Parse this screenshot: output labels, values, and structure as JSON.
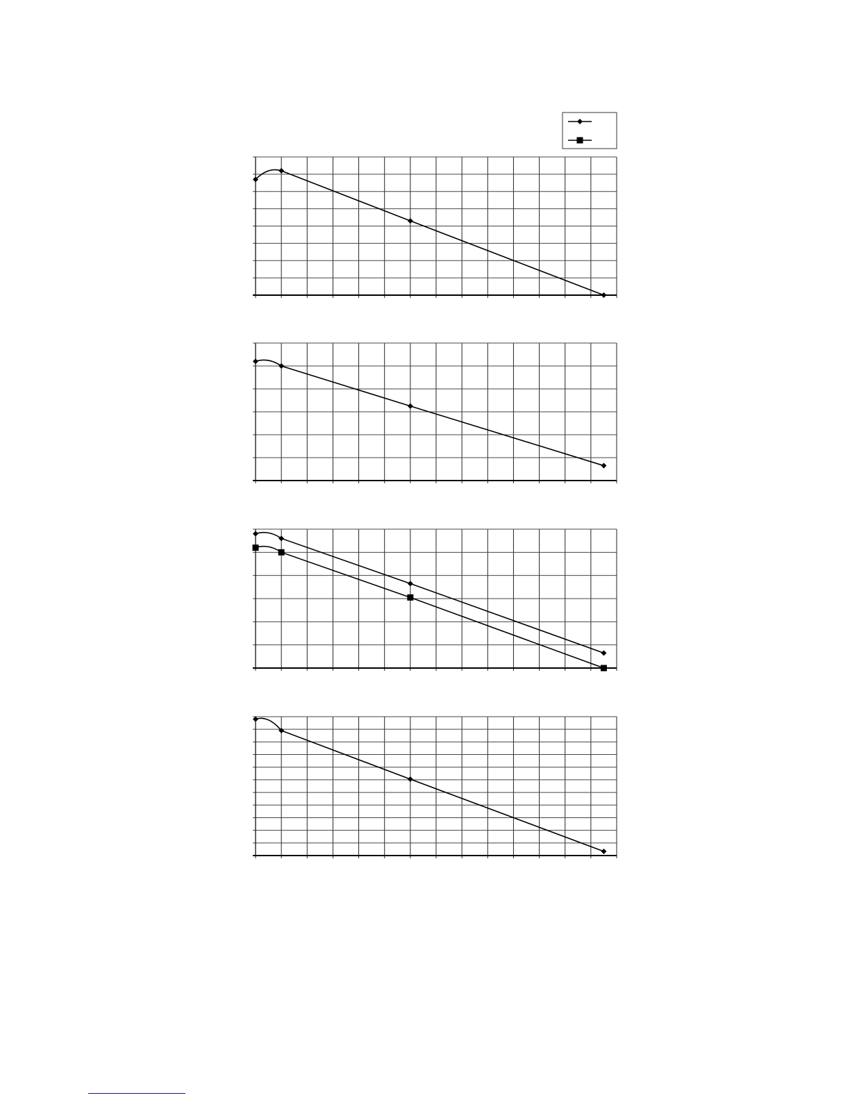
{
  "chart_data": [
    {
      "type": "line",
      "xlim": [
        0,
        14
      ],
      "ylim": [
        0,
        8
      ],
      "grid": true,
      "legend": "top-right",
      "series": [
        {
          "marker": "diamond",
          "x": [
            0,
            1,
            6,
            13.5
          ],
          "y": [
            6.7,
            7.2,
            4.3,
            0
          ]
        }
      ]
    },
    {
      "type": "line",
      "xlim": [
        0,
        14
      ],
      "ylim": [
        0,
        6
      ],
      "grid": true,
      "series": [
        {
          "marker": "diamond",
          "x": [
            0,
            1,
            6,
            13.5
          ],
          "y": [
            5.2,
            5.0,
            3.25,
            0.65
          ]
        }
      ]
    },
    {
      "type": "line",
      "xlim": [
        0,
        14
      ],
      "ylim": [
        0,
        6
      ],
      "grid": true,
      "series": [
        {
          "marker": "diamond",
          "x": [
            0,
            1,
            6,
            13.5
          ],
          "y": [
            5.8,
            5.6,
            3.65,
            0.65
          ]
        },
        {
          "marker": "square",
          "x": [
            0,
            1,
            6,
            13.5
          ],
          "y": [
            5.2,
            5.0,
            3.05,
            0
          ]
        }
      ]
    },
    {
      "type": "line",
      "xlim": [
        0,
        14
      ],
      "ylim": [
        0,
        11
      ],
      "grid": true,
      "series": [
        {
          "marker": "diamond",
          "x": [
            0,
            1,
            6,
            13.5
          ],
          "y": [
            10.8,
            9.9,
            6.05,
            0.33
          ]
        }
      ]
    }
  ],
  "legend": {
    "entries": [
      {
        "marker": "diamond"
      },
      {
        "marker": "square"
      }
    ]
  },
  "colors": {
    "line": "#000000",
    "grid": "#333333",
    "footer_rule": "#1a1a7a"
  }
}
